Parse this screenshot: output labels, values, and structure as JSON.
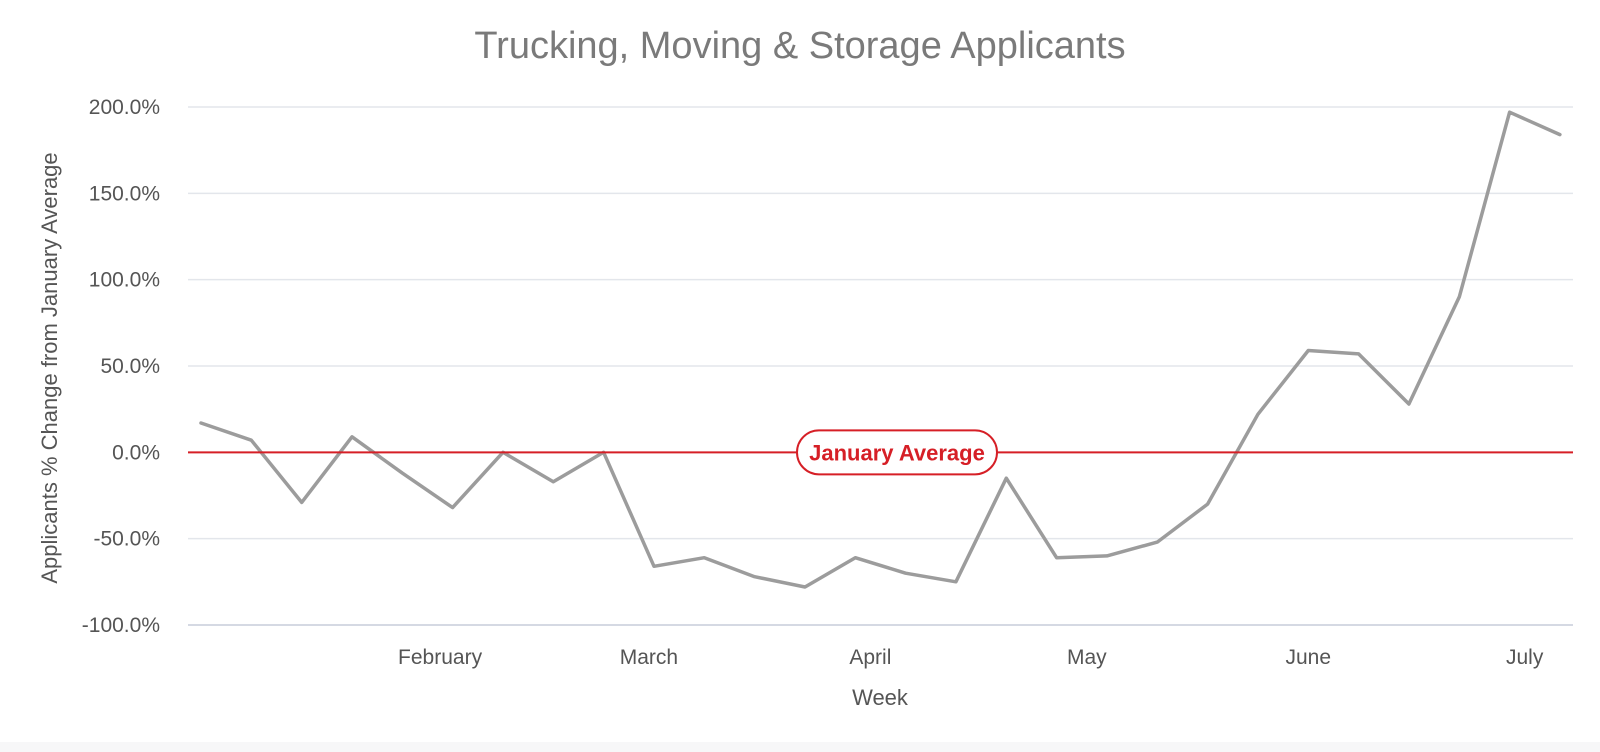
{
  "chart_data": {
    "type": "line",
    "title": "Trucking, Moving & Storage Applicants",
    "xlabel": "Week",
    "ylabel": "Applicants % Change from January Average",
    "ylim": [
      -100,
      200
    ],
    "y_ticks": [
      {
        "value": 200,
        "label": "200.0%"
      },
      {
        "value": 150,
        "label": "150.0%"
      },
      {
        "value": 100,
        "label": "100.0%"
      },
      {
        "value": 50,
        "label": "50.0%"
      },
      {
        "value": 0,
        "label": "0.0%"
      },
      {
        "value": -50,
        "label": "-50.0%"
      },
      {
        "value": -100,
        "label": "-100.0%"
      }
    ],
    "x_ticks": [
      {
        "week": 4.75,
        "label": "February"
      },
      {
        "week": 8.9,
        "label": "March"
      },
      {
        "week": 13.3,
        "label": "April"
      },
      {
        "week": 17.6,
        "label": "May"
      },
      {
        "week": 22.0,
        "label": "June"
      },
      {
        "week": 26.3,
        "label": "July"
      }
    ],
    "grid": true,
    "series": [
      {
        "color": "#9c9c9c",
        "values": [
          17,
          7,
          -29,
          9,
          -12,
          -32,
          0,
          -17,
          0,
          -66,
          -61,
          -72,
          -78,
          -61,
          -70,
          -75,
          -15,
          -61,
          -60,
          -52,
          -30,
          22,
          59,
          57,
          28,
          90,
          197,
          184
        ]
      }
    ],
    "reference_line": {
      "value": 0,
      "label": "January Average",
      "color": "#d61f26"
    }
  }
}
